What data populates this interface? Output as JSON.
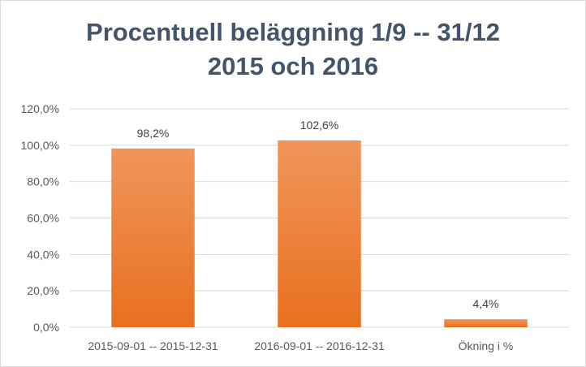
{
  "chart_data": {
    "type": "bar",
    "title_lines": [
      "Procentuell beläggning 1/9 -- 31/12",
      "2015 och 2016"
    ],
    "categories": [
      "2015-09-01 -- 2015-12-31",
      "2016-09-01 -- 2016-12-31",
      "Ökning i %"
    ],
    "values": [
      98.2,
      102.6,
      4.4
    ],
    "data_labels": [
      "98,2%",
      "102,6%",
      "4,4%"
    ],
    "yticks": [
      0,
      20,
      40,
      60,
      80,
      100,
      120
    ],
    "ytick_labels": [
      "0,0%",
      "20,0%",
      "40,0%",
      "60,0%",
      "80,0%",
      "100,0%",
      "120,0%"
    ],
    "ylim": [
      0,
      120
    ],
    "xlabel": "",
    "ylabel": "",
    "grid": true,
    "legend": "none",
    "colors": {
      "bar_top": "#f0955a",
      "bar_bottom": "#e8701f",
      "grid": "#d9d9d9",
      "title": "#44546a"
    }
  }
}
